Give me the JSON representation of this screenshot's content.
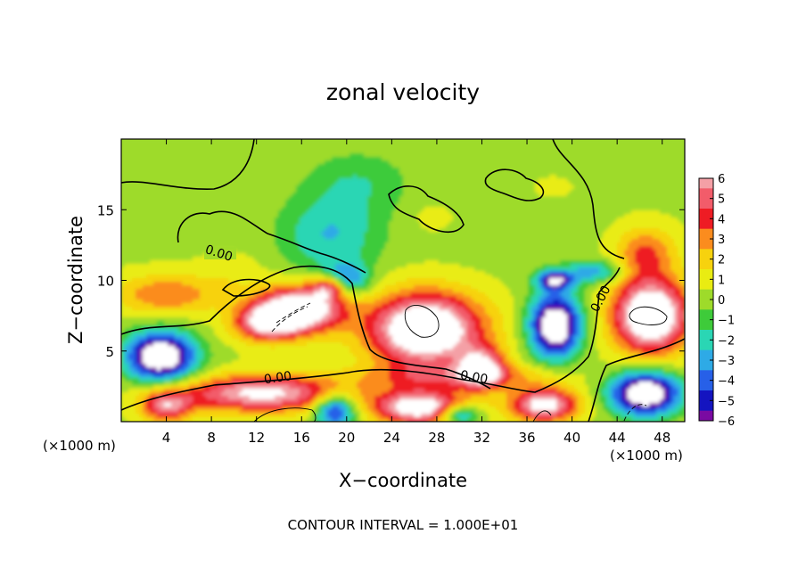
{
  "chart_data": {
    "type": "heatmap",
    "title": "zonal velocity",
    "xlabel": "X−coordinate",
    "ylabel": "Z−coordinate",
    "x_unit": "(×1000 m)",
    "x_unit_right": "(×1000 m)",
    "xlim": [
      0,
      50
    ],
    "ylim": [
      0,
      20
    ],
    "x_ticks": [
      4,
      8,
      12,
      16,
      20,
      24,
      28,
      32,
      36,
      40,
      44,
      48
    ],
    "y_ticks": [
      5,
      10,
      15
    ],
    "footer": "CONTOUR INTERVAL = 1.000E+01",
    "contour_label": "0.00",
    "colorbar": {
      "ticks": [
        6,
        5,
        4,
        3,
        2,
        1,
        0,
        -1,
        -2,
        -3,
        -4,
        -5,
        -6
      ],
      "tick_labels": [
        "6",
        "5",
        "4",
        "3",
        "2",
        "1",
        "0",
        "−1",
        "−2",
        "−3",
        "−4",
        "−5",
        "−6"
      ],
      "colors": [
        "#f4a0a6",
        "#f25c6a",
        "#ee1c24",
        "#fb8c1e",
        "#f7d20e",
        "#e9ec12",
        "#9edb2a",
        "#3ecb3a",
        "#2ad6b4",
        "#2eaae6",
        "#2760e8",
        "#1414c0",
        "#7a0aa2"
      ]
    },
    "field": {
      "background": 0.3,
      "blobs": [
        {
          "x": 21,
          "z": 17,
          "rx": 4.5,
          "rz": 2.2,
          "v": -1.6
        },
        {
          "x": 18.5,
          "z": 13.2,
          "rx": 4.5,
          "rz": 2.8,
          "v": -2.8
        },
        {
          "x": 34,
          "z": 15,
          "rx": 6,
          "rz": 3,
          "v": -0.8
        },
        {
          "x": 28,
          "z": 14.5,
          "rx": 2.4,
          "rz": 1.2,
          "v": 0.9
        },
        {
          "x": 38,
          "z": 16.5,
          "rx": 2.2,
          "rz": 1,
          "v": 1.0
        },
        {
          "x": 4,
          "z": 9,
          "rx": 4.5,
          "rz": 1.4,
          "v": 3.2
        },
        {
          "x": 46.5,
          "z": 12,
          "rx": 2.6,
          "rz": 1.8,
          "v": 3.2
        },
        {
          "x": 10,
          "z": 10.5,
          "rx": 3,
          "rz": 1.5,
          "v": 0.8
        },
        {
          "x": 16,
          "z": 8,
          "rx": 3.8,
          "rz": 1.6,
          "v": 8
        },
        {
          "x": 13,
          "z": 7,
          "rx": 3,
          "rz": 1.3,
          "v": 6
        },
        {
          "x": 18.5,
          "z": 9.5,
          "rx": 1.5,
          "rz": 0.8,
          "v": 5
        },
        {
          "x": 27,
          "z": 6.5,
          "rx": 5,
          "rz": 2.6,
          "v": 9
        },
        {
          "x": 32,
          "z": 3.8,
          "rx": 2,
          "rz": 1.4,
          "v": 6
        },
        {
          "x": 47,
          "z": 7.5,
          "rx": 3.3,
          "rz": 2.6,
          "v": 9
        },
        {
          "x": 12.5,
          "z": 2,
          "rx": 7.5,
          "rz": 1.3,
          "v": 6.5
        },
        {
          "x": 30,
          "z": 3.2,
          "rx": 8,
          "rz": 0.9,
          "v": 3
        },
        {
          "x": 4,
          "z": 1.1,
          "rx": 2.2,
          "rz": 1.1,
          "v": 5
        },
        {
          "x": 26.5,
          "z": 1,
          "rx": 4,
          "rz": 1.2,
          "v": 7.5
        },
        {
          "x": 37.5,
          "z": 1.2,
          "rx": 3,
          "rz": 1.2,
          "v": 7
        },
        {
          "x": 3.5,
          "z": 4.6,
          "rx": 3,
          "rz": 1.7,
          "v": -9
        },
        {
          "x": 38.5,
          "z": 6.8,
          "rx": 2.2,
          "rz": 2.2,
          "v": -9
        },
        {
          "x": 38.5,
          "z": 10,
          "rx": 1.6,
          "rz": 0.7,
          "v": -6
        },
        {
          "x": 46.5,
          "z": 2,
          "rx": 3,
          "rz": 1.5,
          "v": -9
        },
        {
          "x": 19,
          "z": 0.8,
          "rx": 1.8,
          "rz": 1.2,
          "v": -6
        },
        {
          "x": 30,
          "z": 0.5,
          "rx": 1.8,
          "rz": 0.7,
          "v": -5
        },
        {
          "x": 42,
          "z": 10.6,
          "rx": 2.5,
          "rz": 0.8,
          "v": -3.5
        },
        {
          "x": 20,
          "z": 10,
          "rx": 2,
          "rz": 1.2,
          "v": -4
        }
      ]
    }
  }
}
